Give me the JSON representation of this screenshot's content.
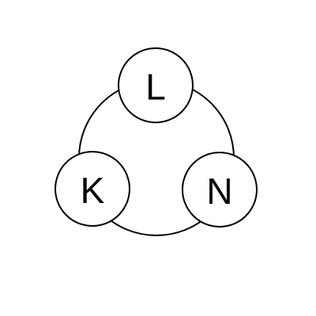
{
  "diagram": {
    "nodes": [
      {
        "id": "top",
        "label": "L"
      },
      {
        "id": "left",
        "label": "K"
      },
      {
        "id": "right",
        "label": "N"
      }
    ]
  }
}
